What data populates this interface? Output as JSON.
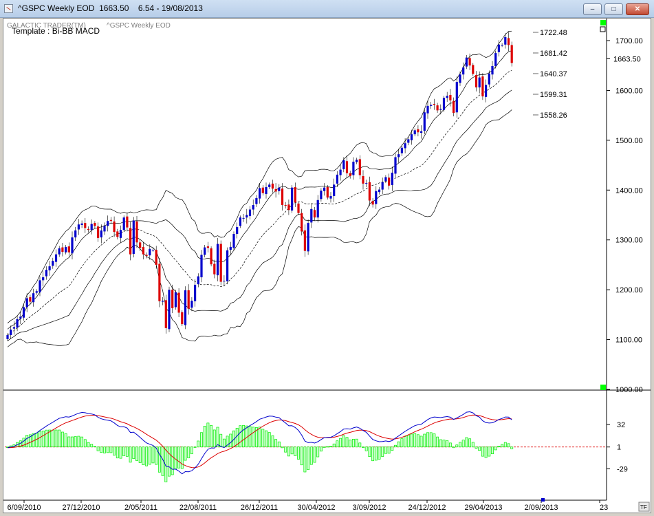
{
  "window": {
    "title": "^GSPC Weekly EOD  1663.50    6.54 - 19/08/2013",
    "minimize_label": "–",
    "maximize_label": "□",
    "close_label": "✕"
  },
  "panel_header": {
    "brand": "GALACTIC TRADER(TM)",
    "subtitle": "^GSPC Weekly EOD",
    "template": "Template : Bi-BB MACD"
  },
  "bottom_button_label": "TF",
  "chart_data": [
    {
      "type": "candlestick",
      "ylim": [
        1000,
        1730
      ],
      "y_ticks": [
        "1700.00",
        "1600.00",
        "1500.00",
        "1400.00",
        "1300.00",
        "1200.00",
        "1100.00",
        "1000.00"
      ],
      "last_price_label": "1663.50",
      "band_labels": [
        "1722.48",
        "1681.42",
        "1640.37",
        "1599.31",
        "1558.26"
      ],
      "grid": false,
      "closes": [
        1109,
        1120,
        1125,
        1141,
        1146,
        1165,
        1183,
        1176,
        1193,
        1197,
        1219,
        1225,
        1240,
        1247,
        1258,
        1271,
        1283,
        1276,
        1286,
        1275,
        1305,
        1319,
        1331,
        1333,
        1324,
        1320,
        1332,
        1328,
        1304,
        1319,
        1328,
        1338,
        1338,
        1316,
        1306,
        1320,
        1345,
        1325,
        1271,
        1339,
        1295,
        1284,
        1271,
        1268,
        1282,
        1280,
        1250,
        1177,
        1178,
        1123,
        1200,
        1163,
        1195,
        1154,
        1131,
        1199,
        1162,
        1178,
        1210,
        1227,
        1270,
        1285,
        1284,
        1251,
        1231,
        1292,
        1216,
        1218,
        1279,
        1286,
        1312,
        1326,
        1345,
        1344,
        1350,
        1361,
        1370,
        1384,
        1404,
        1394,
        1406,
        1411,
        1403,
        1397,
        1405,
        1370,
        1369,
        1360,
        1405,
        1375,
        1354,
        1317,
        1278,
        1334,
        1362,
        1345,
        1380,
        1399,
        1405,
        1385,
        1388,
        1411,
        1431,
        1441,
        1460,
        1434,
        1428,
        1457,
        1461,
        1430,
        1413,
        1414,
        1379,
        1371,
        1398,
        1401,
        1416,
        1426,
        1409,
        1435,
        1466,
        1472,
        1485,
        1494,
        1502,
        1512,
        1520,
        1516,
        1518,
        1556,
        1569,
        1571,
        1571,
        1560,
        1563,
        1585,
        1589,
        1580,
        1555,
        1617,
        1632,
        1646,
        1666,
        1650,
        1633,
        1606,
        1626,
        1588,
        1611,
        1634,
        1649,
        1675,
        1692,
        1691,
        1707,
        1691,
        1655
      ]
    },
    {
      "type": "macd",
      "ylim": [
        -70,
        78
      ],
      "y_ticks": [
        {
          "label": "32",
          "value": 32
        },
        {
          "label": "1",
          "value": 1
        },
        {
          "label": "-29",
          "value": -29
        }
      ],
      "x_tick_labels": [
        "6/09/2010",
        "27/12/2010",
        "2/05/2011",
        "22/08/2011",
        "26/12/2011",
        "30/04/2012",
        "3/09/2012",
        "24/12/2012",
        "29/04/2013",
        "2/09/2013",
        "23"
      ],
      "colors": {
        "macd": "#0000cc",
        "signal": "#dd0000",
        "histogram": "#00ee00",
        "zero_line": "#dd0000"
      }
    }
  ]
}
